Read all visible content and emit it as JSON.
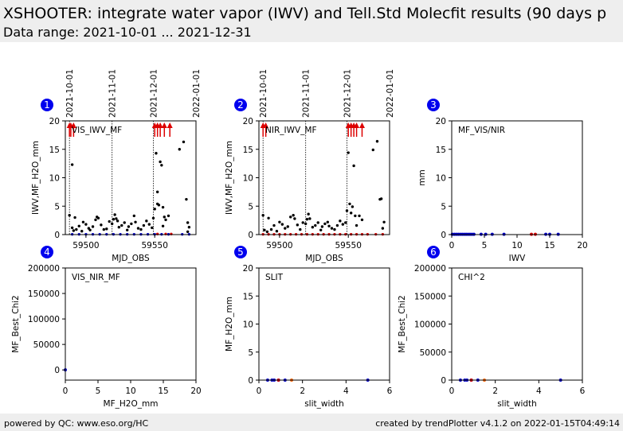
{
  "header": {
    "title": "XSHOOTER: integrate water vapor (IWV) and Tell.Std Molecfit results (90 days p",
    "subtitle": "Data range: 2021-10-01 ... 2021-12-31"
  },
  "footer": {
    "left": "powered by QC: www.eso.org/HC",
    "right": "created by trendPlotter v4.1.2 on 2022-01-15T04:49:14"
  },
  "colors": {
    "black": "#000000",
    "red": "#dd0000",
    "blue": "#0000cc",
    "orange": "#ff6600",
    "panel_badge": "#0000ee"
  },
  "chart_data": [
    {
      "id": "1",
      "type": "scatter",
      "label": "VIS_IWV_MF",
      "xlabel": "MJD_OBS",
      "ylabel": "IWV,MF_H2O_mm",
      "xlim": [
        59485,
        59580
      ],
      "ylim": [
        0,
        20
      ],
      "xticks": [
        59500,
        59550
      ],
      "yticks": [
        0,
        5,
        10,
        15,
        20
      ],
      "date_lines": [
        {
          "x": 59488,
          "label": "2021-10-01"
        },
        {
          "x": 59519,
          "label": "2021-11-01"
        },
        {
          "x": 59549,
          "label": "2021-12-01"
        },
        {
          "x": 59580,
          "label": "2022-01-01"
        }
      ],
      "series": [
        {
          "color": "#000000",
          "points": [
            [
              59488,
              3.4
            ],
            [
              59490,
              12.3
            ],
            [
              59490,
              1.2
            ],
            [
              59491,
              0.7
            ],
            [
              59492,
              3
            ],
            [
              59493,
              0.9
            ],
            [
              59495,
              1.5
            ],
            [
              59497,
              0.6
            ],
            [
              59498,
              2.2
            ],
            [
              59500,
              1.8
            ],
            [
              59502,
              1.1
            ],
            [
              59503,
              0.8
            ],
            [
              59505,
              1.4
            ],
            [
              59507,
              2.6
            ],
            [
              59508,
              3.1
            ],
            [
              59509,
              2.9
            ],
            [
              59511,
              1.7
            ],
            [
              59513,
              0.9
            ],
            [
              59515,
              1
            ],
            [
              59517,
              2.3
            ],
            [
              59519,
              1.9
            ],
            [
              59520,
              2.7
            ],
            [
              59521,
              3.5
            ],
            [
              59522,
              2.8
            ],
            [
              59523,
              2.4
            ],
            [
              59524,
              1.3
            ],
            [
              59526,
              1.6
            ],
            [
              59528,
              2.1
            ],
            [
              59530,
              0.8
            ],
            [
              59531,
              1.4
            ],
            [
              59533,
              1.9
            ],
            [
              59535,
              3.3
            ],
            [
              59536,
              2.2
            ],
            [
              59538,
              1.1
            ],
            [
              59540,
              0.9
            ],
            [
              59542,
              1.6
            ],
            [
              59544,
              2.4
            ],
            [
              59546,
              1.8
            ],
            [
              59548,
              1.2
            ],
            [
              59549,
              2.9
            ],
            [
              59550,
              4.5
            ],
            [
              59551,
              14.3
            ],
            [
              59552,
              5.4
            ],
            [
              59552,
              7.5
            ],
            [
              59553,
              5.2
            ],
            [
              59554,
              12.8
            ],
            [
              59555,
              12.2
            ],
            [
              59556,
              4.8
            ],
            [
              59556,
              1.5
            ],
            [
              59557,
              3.1
            ],
            [
              59558,
              2.6
            ],
            [
              59560,
              3.3
            ],
            [
              59568,
              15
            ],
            [
              59571,
              16.3
            ],
            [
              59573,
              6.2
            ],
            [
              59574,
              2.1
            ],
            [
              59575,
              1.3
            ],
            [
              59574,
              0.5
            ]
          ]
        },
        {
          "color": "#0000cc",
          "points": [
            [
              59490,
              0.05
            ],
            [
              59495,
              0.05
            ],
            [
              59500,
              0.05
            ],
            [
              59505,
              0.05
            ],
            [
              59510,
              0.05
            ],
            [
              59515,
              0.05
            ],
            [
              59520,
              0.05
            ],
            [
              59525,
              0.05
            ],
            [
              59530,
              0.05
            ],
            [
              59535,
              0.05
            ],
            [
              59540,
              0.05
            ],
            [
              59545,
              0.05
            ],
            [
              59550,
              0.05
            ],
            [
              59555,
              0.05
            ],
            [
              59560,
              0.05
            ],
            [
              59570,
              0.05
            ],
            [
              59575,
              0.05
            ]
          ]
        },
        {
          "color": "#dd0000",
          "points": [
            [
              59552,
              0.1
            ],
            [
              59558,
              0.1
            ],
            [
              59562,
              0.1
            ]
          ]
        }
      ],
      "outliers": [
        59488,
        59489,
        59491,
        59550,
        59552,
        59554,
        59557,
        59561
      ]
    },
    {
      "id": "2",
      "type": "scatter",
      "label": "NIR_IWV_MF",
      "xlabel": "MJD_OBS",
      "ylabel": "IWV,MF_H2O_mm",
      "xlim": [
        59485,
        59580
      ],
      "ylim": [
        0,
        20
      ],
      "xticks": [
        59500,
        59550
      ],
      "yticks": [
        0,
        5,
        10,
        15,
        20
      ],
      "date_lines": [
        {
          "x": 59488,
          "label": "2021-10-01"
        },
        {
          "x": 59519,
          "label": "2021-11-01"
        },
        {
          "x": 59549,
          "label": "2021-12-01"
        },
        {
          "x": 59580,
          "label": "2022-01-01"
        }
      ],
      "series": [
        {
          "color": "#000000",
          "points": [
            [
              59488,
              3.4
            ],
            [
              59489,
              0.8
            ],
            [
              59491,
              0.5
            ],
            [
              59492,
              2.9
            ],
            [
              59494,
              0.9
            ],
            [
              59496,
              1.6
            ],
            [
              59498,
              0.6
            ],
            [
              59500,
              2.2
            ],
            [
              59502,
              1.8
            ],
            [
              59504,
              1.1
            ],
            [
              59506,
              1.4
            ],
            [
              59508,
              3.1
            ],
            [
              59510,
              3.4
            ],
            [
              59511,
              2.8
            ],
            [
              59513,
              1.7
            ],
            [
              59515,
              0.9
            ],
            [
              59517,
              2.1
            ],
            [
              59519,
              1.9
            ],
            [
              59520,
              2.7
            ],
            [
              59521,
              3.6
            ],
            [
              59522,
              2.8
            ],
            [
              59524,
              1.3
            ],
            [
              59526,
              1.6
            ],
            [
              59528,
              2.1
            ],
            [
              59530,
              0.8
            ],
            [
              59531,
              1.4
            ],
            [
              59533,
              1.9
            ],
            [
              59535,
              2.2
            ],
            [
              59536,
              1.5
            ],
            [
              59538,
              1.1
            ],
            [
              59540,
              0.9
            ],
            [
              59542,
              1.6
            ],
            [
              59544,
              2.4
            ],
            [
              59546,
              1.8
            ],
            [
              59548,
              2.1
            ],
            [
              59549,
              4.2
            ],
            [
              59550,
              14.4
            ],
            [
              59551,
              5.4
            ],
            [
              59552,
              3.8
            ],
            [
              59553,
              4.9
            ],
            [
              59554,
              12.1
            ],
            [
              59555,
              3.3
            ],
            [
              59556,
              1.6
            ],
            [
              59558,
              3.3
            ],
            [
              59560,
              2.6
            ],
            [
              59568,
              14.9
            ],
            [
              59571,
              16.4
            ],
            [
              59573,
              6.2
            ],
            [
              59574,
              6.3
            ],
            [
              59575,
              1.1
            ],
            [
              59576,
              2.2
            ]
          ]
        },
        {
          "color": "#dd0000",
          "points": [
            [
              59488,
              0.05
            ],
            [
              59492,
              0.05
            ],
            [
              59496,
              0.05
            ],
            [
              59500,
              0.05
            ],
            [
              59504,
              0.05
            ],
            [
              59508,
              0.05
            ],
            [
              59512,
              0.05
            ],
            [
              59516,
              0.05
            ],
            [
              59520,
              0.05
            ],
            [
              59524,
              0.05
            ],
            [
              59528,
              0.05
            ],
            [
              59532,
              0.05
            ],
            [
              59536,
              0.05
            ],
            [
              59540,
              0.05
            ],
            [
              59544,
              0.05
            ],
            [
              59548,
              0.05
            ],
            [
              59552,
              0.05
            ],
            [
              59556,
              0.05
            ],
            [
              59560,
              0.05
            ],
            [
              59564,
              0.05
            ],
            [
              59570,
              0.05
            ],
            [
              59575,
              0.05
            ]
          ]
        }
      ],
      "outliers": [
        59488,
        59490,
        59550,
        59552,
        59554,
        59556,
        59560
      ]
    },
    {
      "id": "3",
      "type": "scatter",
      "label": "MF_VIS/NIR",
      "xlabel": "IWV",
      "ylabel": "mm",
      "xlim": [
        0,
        20
      ],
      "ylim": [
        0,
        20
      ],
      "xticks": [
        0,
        5,
        10,
        15,
        20
      ],
      "yticks": [
        0,
        5,
        10,
        15,
        20
      ],
      "series": [
        {
          "color": "#0000cc",
          "points": [
            [
              0.1,
              0.05
            ],
            [
              0.4,
              0.05
            ],
            [
              0.7,
              0.05
            ],
            [
              1,
              0.05
            ],
            [
              1.3,
              0.05
            ],
            [
              1.6,
              0.05
            ],
            [
              1.9,
              0.05
            ],
            [
              2.2,
              0.05
            ],
            [
              2.5,
              0.05
            ],
            [
              2.8,
              0.05
            ],
            [
              3.1,
              0.05
            ],
            [
              3.4,
              0.05
            ],
            [
              4.5,
              0.05
            ],
            [
              5.2,
              0.05
            ],
            [
              6.2,
              0.05
            ],
            [
              8,
              0.05
            ],
            [
              14.4,
              0.05
            ],
            [
              15,
              0.05
            ],
            [
              16.3,
              0.05
            ]
          ]
        },
        {
          "color": "#dd0000",
          "points": [
            [
              12.2,
              0.05
            ],
            [
              12.8,
              0.05
            ]
          ]
        }
      ]
    },
    {
      "id": "4",
      "type": "scatter",
      "label": "VIS_NIR_MF",
      "xlabel": "MF_H2O_mm",
      "ylabel": "MF_Best_Chi2",
      "xlim": [
        0,
        20
      ],
      "ylim": [
        -20000,
        200000
      ],
      "xticks": [
        0,
        5,
        10,
        15,
        20
      ],
      "yticks": [
        0,
        50000,
        100000,
        150000,
        200000
      ],
      "series": [
        {
          "color": "#0000cc",
          "points": [
            [
              0,
              0
            ]
          ]
        }
      ]
    },
    {
      "id": "5",
      "type": "scatter",
      "label": "SLIT",
      "xlabel": "slit_width",
      "ylabel": "MF_H2O_mm",
      "xlim": [
        0,
        6
      ],
      "ylim": [
        0,
        20
      ],
      "xticks": [
        0,
        2,
        4,
        6
      ],
      "yticks": [
        0,
        5,
        10,
        15,
        20
      ],
      "series": [
        {
          "color": "#0000cc",
          "points": [
            [
              0.4,
              0
            ],
            [
              0.6,
              0
            ],
            [
              0.7,
              0
            ],
            [
              0.9,
              0
            ],
            [
              1.2,
              0
            ],
            [
              5,
              0
            ]
          ]
        },
        {
          "color": "#dd0000",
          "points": [
            [
              0.9,
              0
            ]
          ]
        },
        {
          "color": "#ff6600",
          "points": [
            [
              1.5,
              0
            ]
          ]
        }
      ]
    },
    {
      "id": "6",
      "type": "scatter",
      "label": "CHI^2",
      "xlabel": "slit_width",
      "ylabel": "MF_Best_Chi2",
      "xlim": [
        0,
        6
      ],
      "ylim": [
        0,
        200000
      ],
      "xticks": [
        0,
        2,
        4,
        6
      ],
      "yticks": [
        0,
        50000,
        100000,
        150000,
        200000
      ],
      "series": [
        {
          "color": "#0000cc",
          "points": [
            [
              0.4,
              0
            ],
            [
              0.6,
              0
            ],
            [
              0.7,
              0
            ],
            [
              0.9,
              0
            ],
            [
              1.2,
              0
            ],
            [
              5,
              0
            ]
          ]
        },
        {
          "color": "#dd0000",
          "points": [
            [
              0.9,
              0
            ]
          ]
        },
        {
          "color": "#ff6600",
          "points": [
            [
              1.5,
              0
            ]
          ]
        }
      ]
    }
  ]
}
